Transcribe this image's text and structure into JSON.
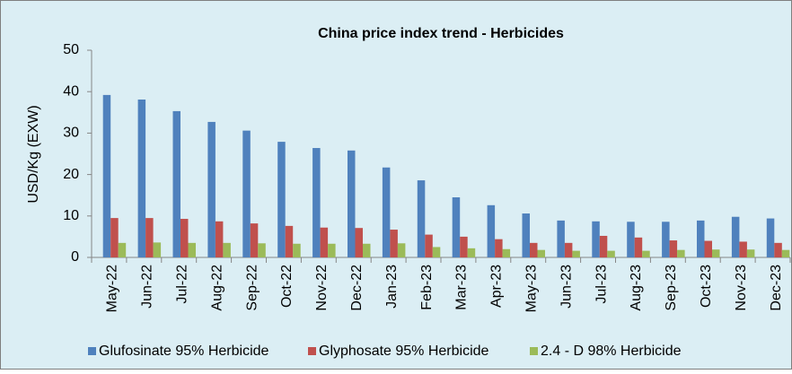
{
  "chart_data": {
    "type": "bar",
    "title": "China price index  trend - Herbicides",
    "y_label": "USD/Kg (EXW)",
    "categories": [
      "May-22",
      "Jun-22",
      "Jul-22",
      "Aug-22",
      "Sep-22",
      "Oct-22",
      "Nov-22",
      "Dec-22",
      "Jan-23",
      "Feb-23",
      "Mar-23",
      "Apr-23",
      "May-23",
      "Jun-23",
      "Jul-23",
      "Aug-23",
      "Sep-23",
      "Oct-23",
      "Nov-23",
      "Dec-23"
    ],
    "series": [
      {
        "name": "Glufosinate 95% Herbicide",
        "color": "#4f81bd",
        "values": [
          39.2,
          38.1,
          35.3,
          32.7,
          30.6,
          27.9,
          26.4,
          25.8,
          21.7,
          18.6,
          14.5,
          12.6,
          10.6,
          8.9,
          8.7,
          8.6,
          8.6,
          8.9,
          9.8,
          9.4
        ]
      },
      {
        "name": "Glyphosate 95% Herbicide",
        "color": "#c0504d",
        "values": [
          9.5,
          9.5,
          9.3,
          8.7,
          8.2,
          7.6,
          7.2,
          7.1,
          6.7,
          5.5,
          5.0,
          4.4,
          3.5,
          3.5,
          5.2,
          4.8,
          4.1,
          4.0,
          3.8,
          3.5
        ]
      },
      {
        "name": "2.4 - D 98% Herbicide",
        "color": "#9bbb59",
        "values": [
          3.5,
          3.6,
          3.5,
          3.5,
          3.4,
          3.3,
          3.3,
          3.3,
          3.4,
          2.5,
          2.2,
          2.0,
          1.8,
          1.6,
          1.6,
          1.6,
          1.8,
          1.9,
          1.9,
          1.8
        ]
      }
    ],
    "ylim": [
      0,
      50
    ],
    "yticks": [
      0,
      10,
      20,
      30,
      40,
      50
    ],
    "grid": false,
    "legend": "bottom"
  }
}
